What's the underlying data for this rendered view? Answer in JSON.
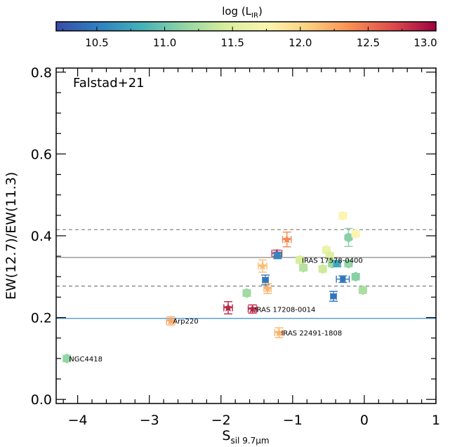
{
  "chart_data": {
    "type": "scatter",
    "annotation_label": "Falstad+21",
    "xlabel": "S",
    "xlabel_sub": "sil 9.7μm",
    "ylabel": "EW(12.7)/EW(11.3)",
    "xlim": [
      -4.3,
      1.0
    ],
    "ylim": [
      -0.01,
      0.81
    ],
    "x_ticks": [
      -4,
      -3,
      -2,
      -1,
      0,
      1
    ],
    "y_ticks": [
      "0.0",
      "0.2",
      "0.4",
      "0.6",
      "0.8"
    ],
    "colorbar": {
      "label_prefix": "log (L",
      "label_sub": "IR",
      "label_suffix": ")",
      "range": [
        10.2,
        13.0
      ],
      "ticks": [
        "10.5",
        "11.0",
        "11.5",
        "12.0",
        "12.5",
        "13.0"
      ],
      "colormap": [
        "#3a4ca8",
        "#2f7fc0",
        "#44b0b8",
        "#8fd4a4",
        "#d7ee9c",
        "#fbf5b0",
        "#fdcf7e",
        "#f88d52",
        "#dc4a4b",
        "#9e0142"
      ]
    },
    "horizontal_lines": [
      {
        "y": 0.415,
        "style": "dashed",
        "color": "#888888"
      },
      {
        "y": 0.347,
        "style": "solid",
        "color": "#888888"
      },
      {
        "y": 0.277,
        "style": "dashed",
        "color": "#888888"
      },
      {
        "y": 0.198,
        "style": "solid",
        "color": "#3a8fd6"
      }
    ],
    "points": [
      {
        "x": -4.15,
        "y": 0.1,
        "logLIR": 11.15,
        "marker": "hexagon",
        "label": "NGC4418",
        "xerr": 0.05,
        "yerr": 0.008
      },
      {
        "x": -2.7,
        "y": 0.192,
        "logLIR": 12.25,
        "marker": "star",
        "label": "Arp220",
        "xerr": 0.06,
        "yerr": 0.01
      },
      {
        "x": -1.9,
        "y": 0.224,
        "logLIR": 12.85,
        "marker": "star",
        "label": "",
        "xerr": 0.06,
        "yerr": 0.015
      },
      {
        "x": -1.56,
        "y": 0.221,
        "logLIR": 12.85,
        "marker": "star",
        "label": "IRAS 17208-0014",
        "xerr": 0.06,
        "yerr": 0.01
      },
      {
        "x": -1.19,
        "y": 0.163,
        "logLIR": 12.2,
        "marker": "star",
        "label": "IRAS 22491-1808",
        "xerr": 0.06,
        "yerr": 0.012
      },
      {
        "x": -1.64,
        "y": 0.26,
        "logLIR": 11.2,
        "marker": "hexagon",
        "label": "",
        "xerr": 0.04,
        "yerr": 0.008
      },
      {
        "x": -1.42,
        "y": 0.326,
        "logLIR": 12.15,
        "marker": "star",
        "label": "",
        "xerr": 0.06,
        "yerr": 0.015
      },
      {
        "x": -1.38,
        "y": 0.292,
        "logLIR": 10.45,
        "marker": "square",
        "label": "",
        "xerr": 0.04,
        "yerr": 0.012
      },
      {
        "x": -1.35,
        "y": 0.271,
        "logLIR": 12.2,
        "marker": "star",
        "label": "",
        "xerr": 0.05,
        "yerr": 0.012
      },
      {
        "x": -1.22,
        "y": 0.357,
        "logLIR": 12.8,
        "marker": "star",
        "label": "",
        "xerr": 0.07,
        "yerr": 0.008
      },
      {
        "x": -1.21,
        "y": 0.352,
        "logLIR": 10.55,
        "marker": "square",
        "label": "",
        "xerr": 0.05,
        "yerr": 0.008
      },
      {
        "x": -1.08,
        "y": 0.391,
        "logLIR": 12.4,
        "marker": "star",
        "label": "",
        "xerr": 0.06,
        "yerr": 0.018
      },
      {
        "x": -0.9,
        "y": 0.341,
        "logLIR": 11.45,
        "marker": "hexagon",
        "label": "IRAS 17578-0400",
        "xerr": 0.04,
        "yerr": 0.008
      },
      {
        "x": -0.85,
        "y": 0.322,
        "logLIR": 11.3,
        "marker": "hexagon",
        "label": "",
        "xerr": 0.04,
        "yerr": 0.008
      },
      {
        "x": -0.58,
        "y": 0.319,
        "logLIR": 11.4,
        "marker": "hexagon",
        "label": "",
        "xerr": 0.04,
        "yerr": 0.008
      },
      {
        "x": -0.53,
        "y": 0.365,
        "logLIR": 11.6,
        "marker": "hexagon",
        "label": "",
        "xerr": 0.04,
        "yerr": 0.008
      },
      {
        "x": -0.48,
        "y": 0.351,
        "logLIR": 11.5,
        "marker": "hexagon",
        "label": "",
        "xerr": 0.04,
        "yerr": 0.008
      },
      {
        "x": -0.45,
        "y": 0.332,
        "logLIR": 11.2,
        "marker": "hexagon",
        "label": "",
        "xerr": 0.04,
        "yerr": 0.008
      },
      {
        "x": -0.38,
        "y": 0.332,
        "logLIR": 10.75,
        "marker": "square",
        "label": "",
        "xerr": 0.05,
        "yerr": 0.008
      },
      {
        "x": -0.43,
        "y": 0.252,
        "logLIR": 10.45,
        "marker": "square",
        "label": "",
        "xerr": 0.04,
        "yerr": 0.012
      },
      {
        "x": -0.3,
        "y": 0.294,
        "logLIR": 10.45,
        "marker": "square",
        "label": "",
        "xerr": 0.09,
        "yerr": 0.008
      },
      {
        "x": -0.3,
        "y": 0.449,
        "logLIR": 11.75,
        "marker": "hexagon",
        "label": "",
        "xerr": 0.04,
        "yerr": 0.008
      },
      {
        "x": -0.22,
        "y": 0.396,
        "logLIR": 11.1,
        "marker": "hexagon",
        "label": "",
        "xerr": 0.04,
        "yerr": 0.022
      },
      {
        "x": -0.22,
        "y": 0.332,
        "logLIR": 11.15,
        "marker": "hexagon",
        "label": "",
        "xerr": 0.04,
        "yerr": 0.008
      },
      {
        "x": -0.12,
        "y": 0.405,
        "logLIR": 11.75,
        "marker": "hexagon",
        "label": "",
        "xerr": 0.04,
        "yerr": 0.008
      },
      {
        "x": -0.12,
        "y": 0.3,
        "logLIR": 11.1,
        "marker": "hexagon",
        "label": "",
        "xerr": 0.04,
        "yerr": 0.008
      },
      {
        "x": -0.02,
        "y": 0.267,
        "logLIR": 11.25,
        "marker": "hexagon",
        "label": "",
        "xerr": 0.04,
        "yerr": 0.008
      }
    ]
  }
}
